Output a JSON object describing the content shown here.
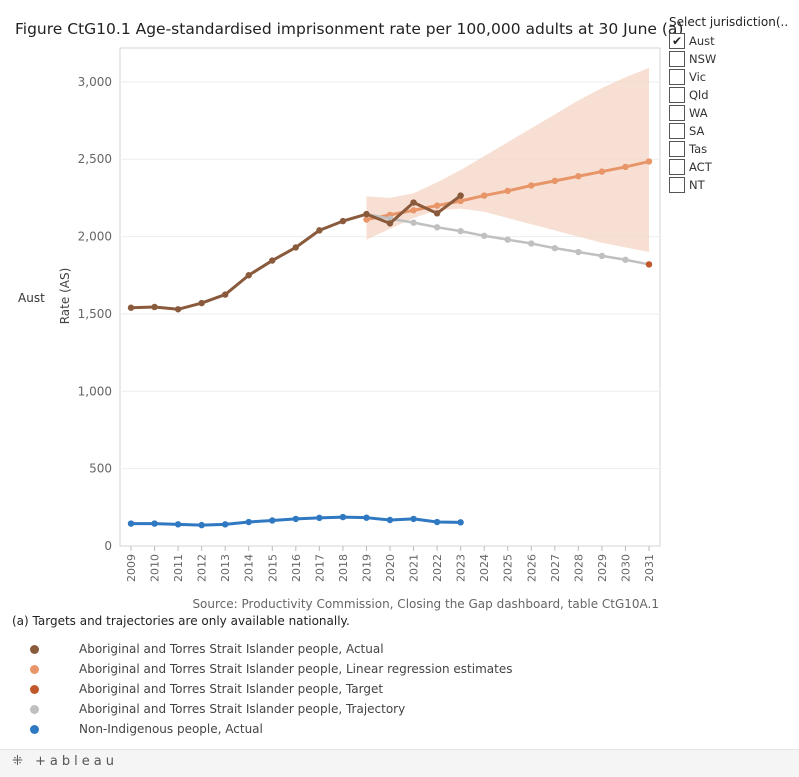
{
  "title": "Figure CtG10.1 Age-standardised imprisonment rate per 100,000 adults at 30 June (a)",
  "filter": {
    "title": "Select jurisdiction(..",
    "options": [
      {
        "label": "Aust",
        "checked": true
      },
      {
        "label": "NSW",
        "checked": false
      },
      {
        "label": "Vic",
        "checked": false
      },
      {
        "label": "Qld",
        "checked": false
      },
      {
        "label": "WA",
        "checked": false
      },
      {
        "label": "SA",
        "checked": false
      },
      {
        "label": "Tas",
        "checked": false
      },
      {
        "label": "ACT",
        "checked": false
      },
      {
        "label": "NT",
        "checked": false
      }
    ]
  },
  "row_label": "Aust",
  "chart_data": {
    "type": "line",
    "title": "Figure CtG10.1 Age-standardised imprisonment rate per 100,000 adults at 30 June (a)",
    "ylabel": "Rate (AS)",
    "xlabel": "",
    "ylim": [
      0,
      3200
    ],
    "yticks": [
      0,
      500,
      1000,
      1500,
      2000,
      2500,
      3000
    ],
    "ytick_labels": [
      "0",
      "500",
      "1,000",
      "1,500",
      "2,000",
      "2,500",
      "3,000"
    ],
    "x": [
      2009,
      2010,
      2011,
      2012,
      2013,
      2014,
      2015,
      2016,
      2017,
      2018,
      2019,
      2020,
      2021,
      2022,
      2023,
      2024,
      2025,
      2026,
      2027,
      2028,
      2029,
      2030,
      2031
    ],
    "grid": true,
    "band": {
      "name": "Linear regression estimates range",
      "color": "#f4d6c4",
      "x": [
        2019,
        2020,
        2021,
        2022,
        2023,
        2024,
        2025,
        2026,
        2027,
        2028,
        2029,
        2030,
        2031
      ],
      "upper": [
        2260,
        2250,
        2280,
        2350,
        2430,
        2520,
        2610,
        2700,
        2790,
        2880,
        2960,
        3030,
        3090
      ],
      "lower": [
        1980,
        2050,
        2120,
        2170,
        2180,
        2160,
        2120,
        2080,
        2040,
        2000,
        1960,
        1930,
        1900
      ]
    },
    "series": [
      {
        "name": "Aboriginal and Torres Strait Islander people, Linear regression estimates",
        "color": "#e8956a",
        "x": [
          2019,
          2020,
          2021,
          2022,
          2023,
          2024,
          2025,
          2026,
          2027,
          2028,
          2029,
          2030,
          2031
        ],
        "values": [
          2110,
          2140,
          2170,
          2200,
          2230,
          2265,
          2295,
          2330,
          2360,
          2390,
          2420,
          2450,
          2485
        ]
      },
      {
        "name": "Aboriginal and Torres Strait Islander people, Trajectory",
        "color": "#c0c0c0",
        "x": [
          2019,
          2020,
          2021,
          2022,
          2023,
          2024,
          2025,
          2026,
          2027,
          2028,
          2029,
          2030,
          2031
        ],
        "values": [
          2145,
          2115,
          2090,
          2060,
          2035,
          2005,
          1980,
          1955,
          1925,
          1900,
          1875,
          1850,
          1820
        ]
      },
      {
        "name": "Aboriginal and Torres Strait Islander people, Actual",
        "color": "#8a5a3c",
        "x": [
          2009,
          2010,
          2011,
          2012,
          2013,
          2014,
          2015,
          2016,
          2017,
          2018,
          2019,
          2020,
          2021,
          2022,
          2023
        ],
        "values": [
          1540,
          1545,
          1530,
          1570,
          1625,
          1750,
          1845,
          1930,
          2040,
          2100,
          2145,
          2085,
          2220,
          2150,
          2265
        ]
      },
      {
        "name": "Aboriginal and Torres Strait Islander people, Target",
        "color": "#c0582b",
        "x": [
          2031
        ],
        "values": [
          1820
        ]
      },
      {
        "name": "Non-Indigenous people, Actual",
        "color": "#2f78c2",
        "x": [
          2009,
          2010,
          2011,
          2012,
          2013,
          2014,
          2015,
          2016,
          2017,
          2018,
          2019,
          2020,
          2021,
          2022,
          2023
        ],
        "values": [
          145,
          145,
          140,
          135,
          140,
          155,
          165,
          175,
          182,
          187,
          183,
          168,
          175,
          155,
          153
        ]
      }
    ]
  },
  "source": "Source: Productivity Commission, Closing the Gap dashboard, table CtG10A.1",
  "note": "(a) Targets and trajectories are only available nationally.",
  "legend": [
    {
      "label": "Aboriginal and Torres Strait Islander people, Actual",
      "color": "#8a5a3c"
    },
    {
      "label": "Aboriginal and Torres Strait Islander people, Linear regression estimates",
      "color": "#e8956a"
    },
    {
      "label": "Aboriginal and Torres Strait Islander people, Target",
      "color": "#c0582b"
    },
    {
      "label": "Aboriginal and Torres Strait Islander people, Trajectory",
      "color": "#c0c0c0"
    },
    {
      "label": "Non-Indigenous people, Actual",
      "color": "#2f78c2"
    }
  ],
  "footer": {
    "logo": "+ableau",
    "logo_icon": "tableau-plus-icon"
  }
}
